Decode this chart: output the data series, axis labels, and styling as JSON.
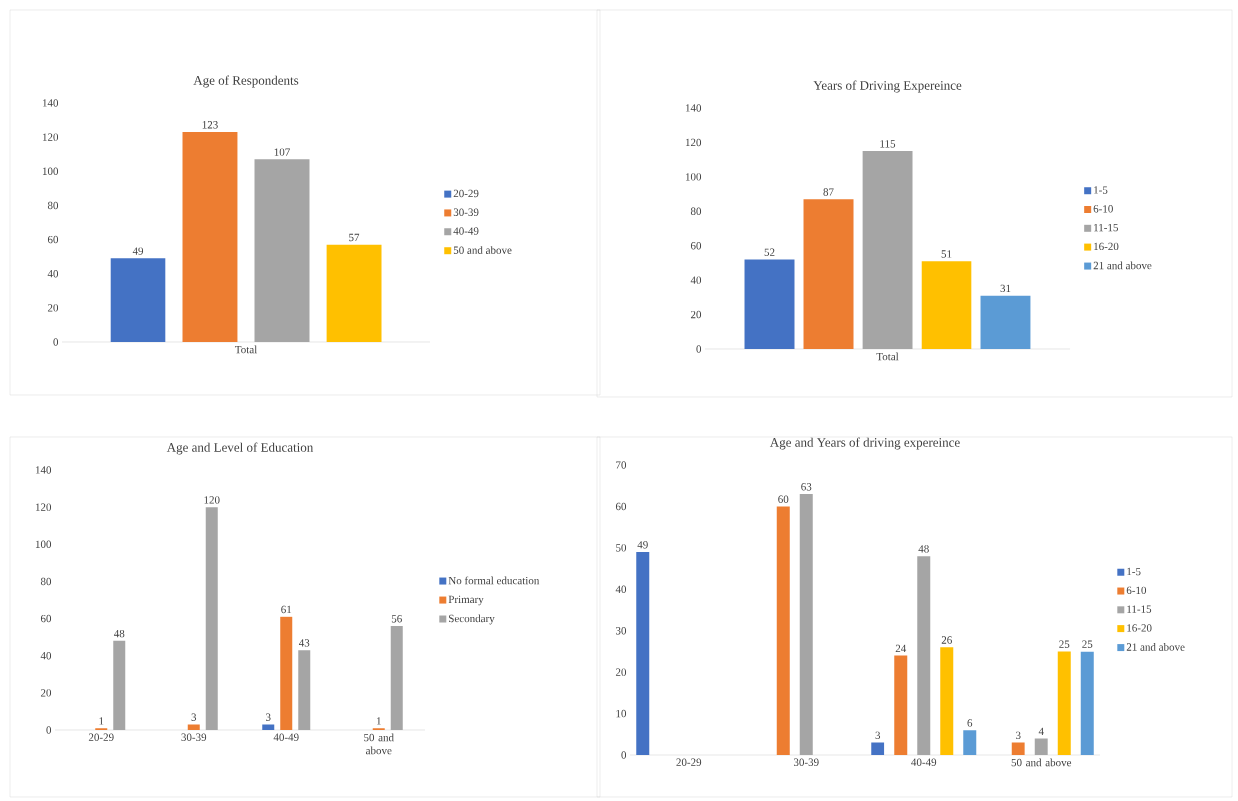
{
  "chart_data": [
    {
      "type": "bar",
      "title": "Age of Respondents",
      "categories": [
        "Total"
      ],
      "series": [
        {
          "name": "20-29",
          "color": "#4472c4",
          "values": [
            49
          ]
        },
        {
          "name": "30-39",
          "color": "#ed7d31",
          "values": [
            123
          ]
        },
        {
          "name": "40-49",
          "color": "#a5a5a5",
          "values": [
            107
          ]
        },
        {
          "name": "50 and above",
          "color": "#ffc000",
          "values": [
            57
          ]
        }
      ],
      "ylim": [
        0,
        140
      ],
      "yticks": [
        0,
        20,
        40,
        60,
        80,
        100,
        120,
        140
      ],
      "data_labels": true,
      "legend": "right",
      "grid": false
    },
    {
      "type": "bar",
      "title": "Years of Driving Expereince",
      "categories": [
        "Total"
      ],
      "series": [
        {
          "name": "1-5",
          "color": "#4472c4",
          "values": [
            52
          ]
        },
        {
          "name": "6-10",
          "color": "#ed7d31",
          "values": [
            87
          ]
        },
        {
          "name": "11-15",
          "color": "#a5a5a5",
          "values": [
            115
          ]
        },
        {
          "name": "16-20",
          "color": "#ffc000",
          "values": [
            51
          ]
        },
        {
          "name": "21 and above",
          "color": "#5b9bd5",
          "values": [
            31
          ]
        }
      ],
      "ylim": [
        0,
        140
      ],
      "yticks": [
        0,
        20,
        40,
        60,
        80,
        100,
        120,
        140
      ],
      "data_labels": true,
      "legend": "right",
      "grid": false
    },
    {
      "type": "bar",
      "title": "Age and Level of Education",
      "categories": [
        "20-29",
        "30-39",
        "40-49",
        "50 and above"
      ],
      "series": [
        {
          "name": "No formal education",
          "color": "#4472c4",
          "values": [
            null,
            null,
            3,
            null
          ]
        },
        {
          "name": "Primary",
          "color": "#ed7d31",
          "values": [
            1,
            3,
            61,
            1
          ]
        },
        {
          "name": "Secondary",
          "color": "#a5a5a5",
          "values": [
            48,
            120,
            43,
            56
          ]
        }
      ],
      "ylim": [
        0,
        140
      ],
      "yticks": [
        0,
        20,
        40,
        60,
        80,
        100,
        120,
        140
      ],
      "data_labels": true,
      "legend": "right",
      "grid": false
    },
    {
      "type": "bar",
      "title": "Age and Years of driving expereince",
      "categories": [
        "20-29",
        "30-39",
        "40-49",
        "50 and above"
      ],
      "series": [
        {
          "name": "1-5",
          "color": "#4472c4",
          "values": [
            49,
            null,
            3,
            null
          ]
        },
        {
          "name": "6-10",
          "color": "#ed7d31",
          "values": [
            null,
            60,
            24,
            3
          ]
        },
        {
          "name": "11-15",
          "color": "#a5a5a5",
          "values": [
            null,
            63,
            48,
            4
          ]
        },
        {
          "name": "16-20",
          "color": "#ffc000",
          "values": [
            null,
            null,
            26,
            25
          ]
        },
        {
          "name": "21 and above",
          "color": "#5b9bd5",
          "values": [
            null,
            null,
            6,
            25
          ]
        }
      ],
      "ylim": [
        0,
        70
      ],
      "yticks": [
        0,
        10,
        20,
        30,
        40,
        50,
        60,
        70
      ],
      "data_labels": true,
      "legend": "right",
      "grid": false
    }
  ]
}
